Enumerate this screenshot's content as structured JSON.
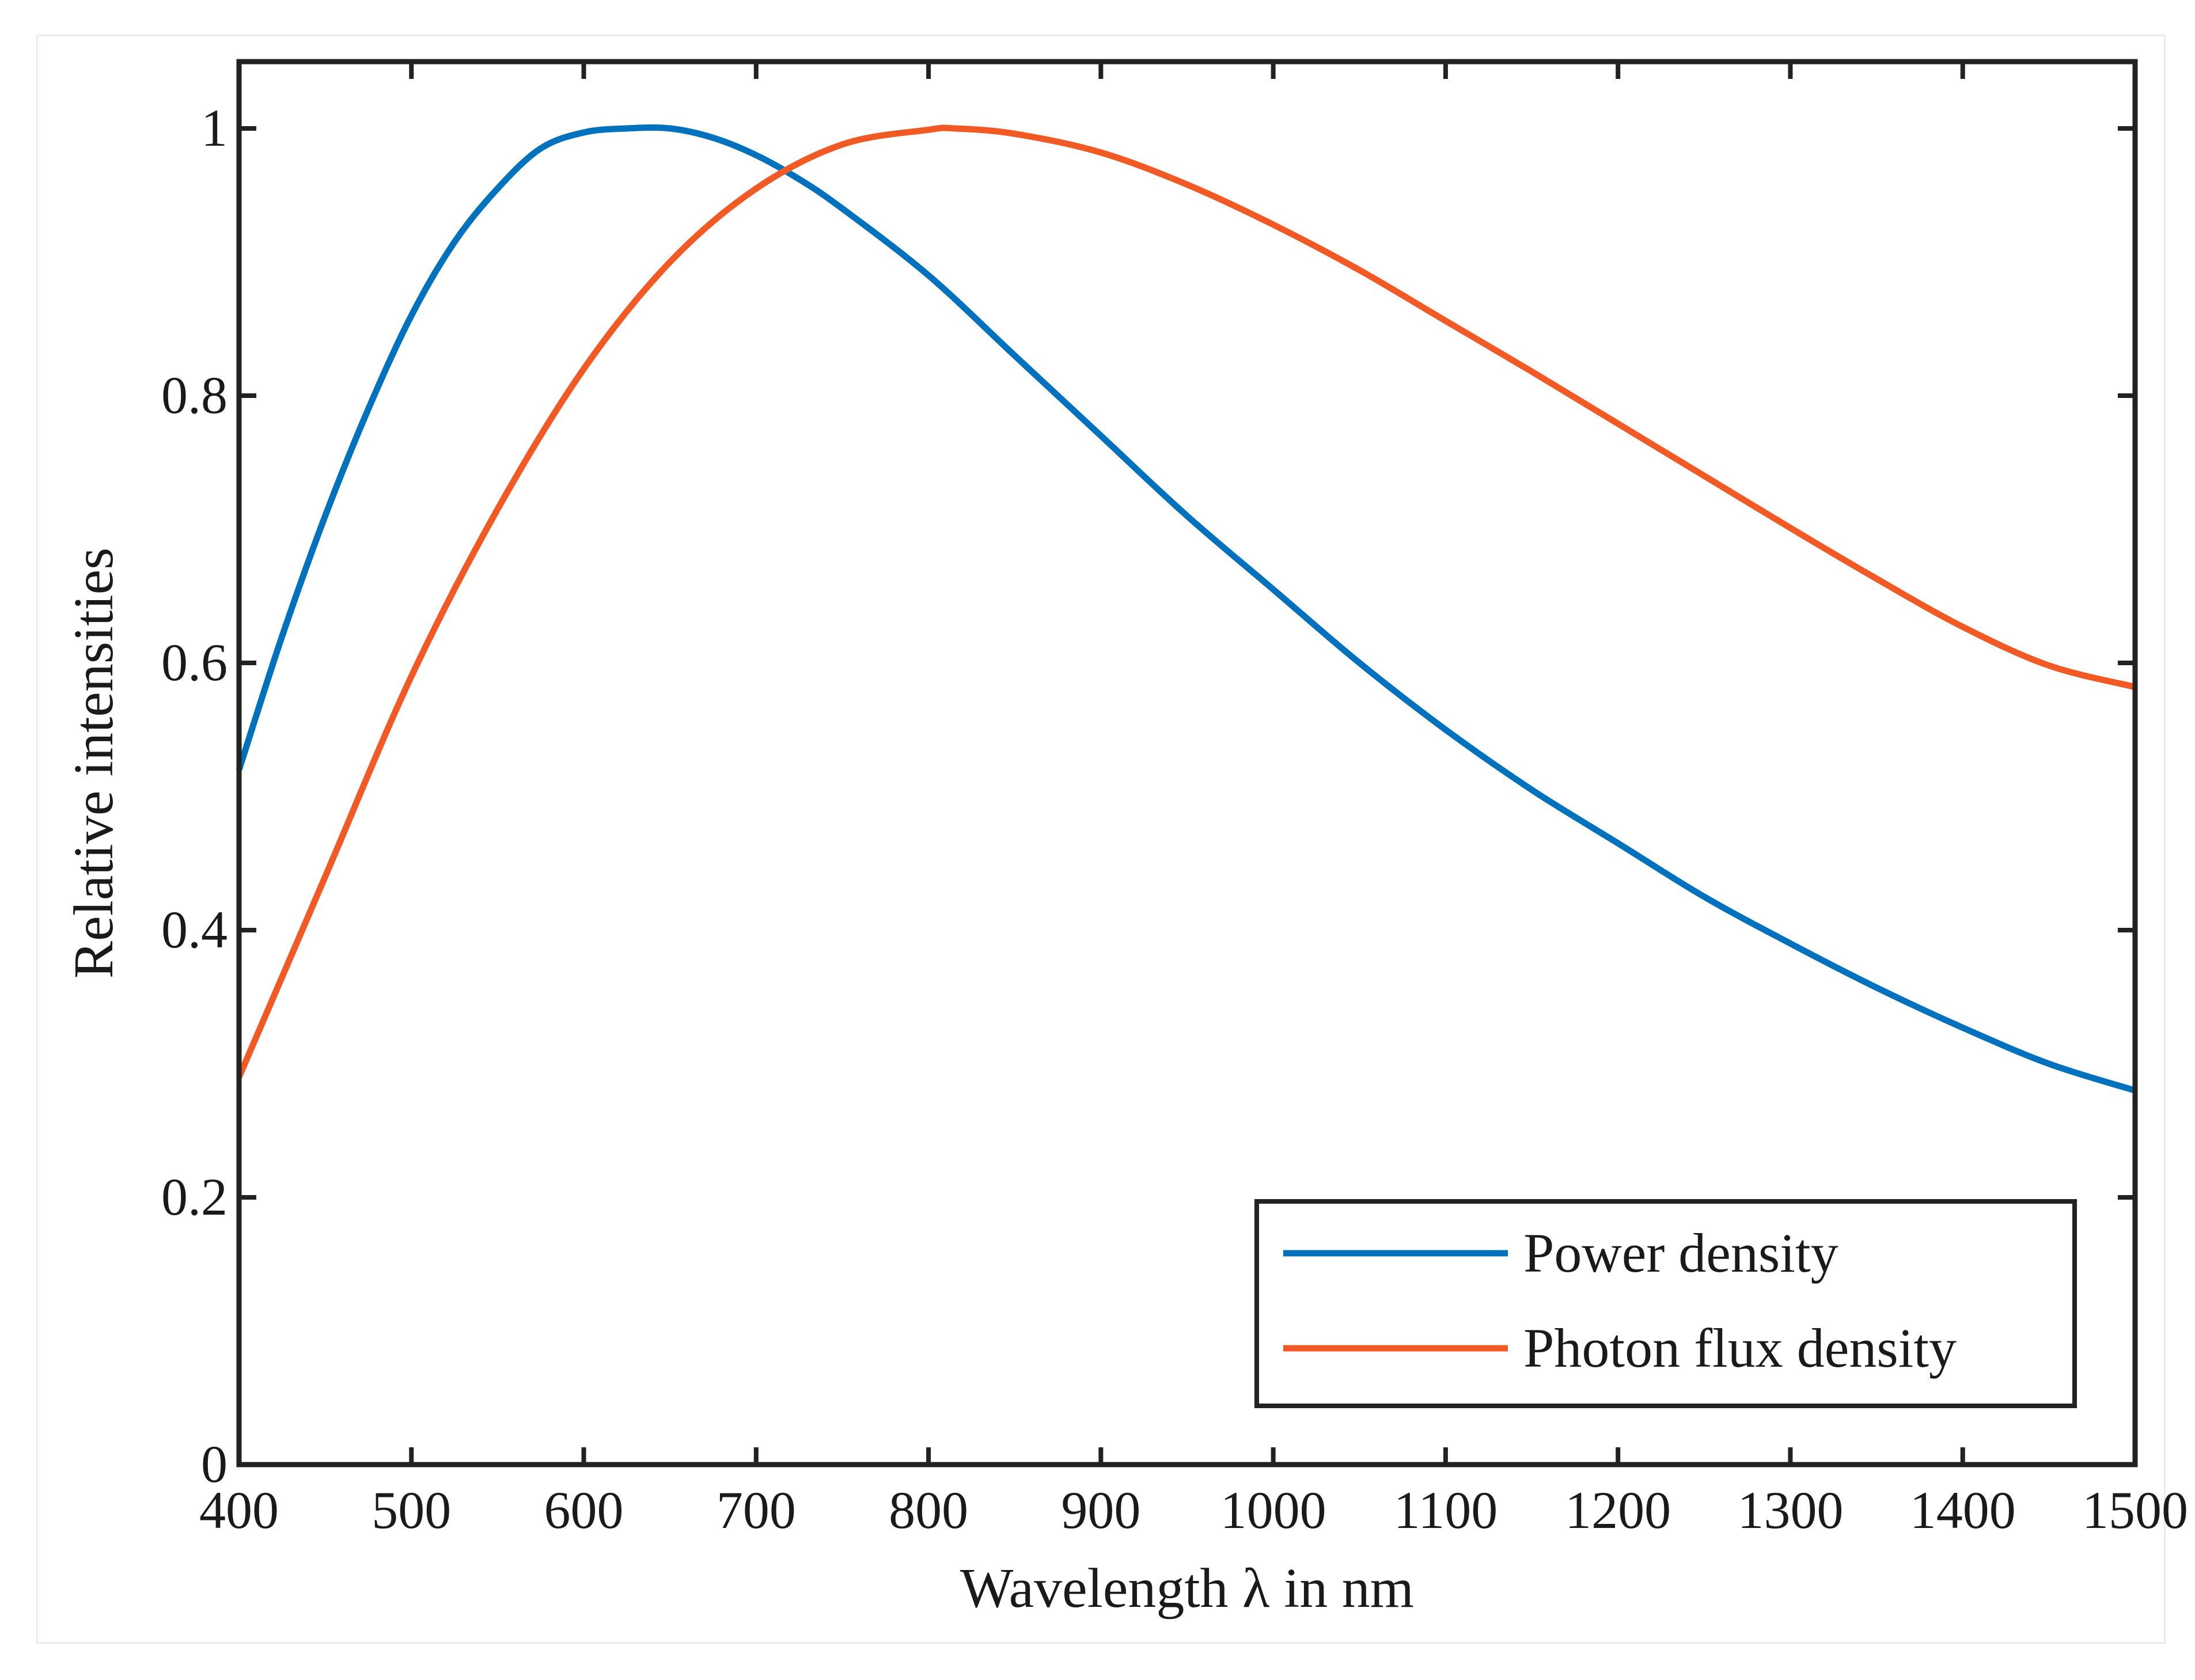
{
  "chart_data": {
    "type": "line",
    "title": "",
    "xlabel": "Wavelength λ in nm",
    "ylabel": "Relative intensities",
    "xlim": [
      400,
      1500
    ],
    "ylim": [
      0,
      1.05
    ],
    "xticks": [
      400,
      500,
      600,
      700,
      800,
      900,
      1000,
      1100,
      1200,
      1300,
      1400,
      1500
    ],
    "xtick_labels": [
      "400",
      "500",
      "600",
      "700",
      "800",
      "900",
      "1000",
      "1100",
      "1200",
      "1300",
      "1400",
      "1500"
    ],
    "yticks": [
      0,
      0.2,
      0.4,
      0.6,
      0.8,
      1
    ],
    "ytick_labels": [
      "0",
      "0.2",
      "0.4",
      "0.6",
      "0.8",
      "1"
    ],
    "grid": false,
    "legend_position": "bottom-right",
    "series": [
      {
        "name": "Power density",
        "color": "#0072bd",
        "x": [
          400,
          425,
          450,
          475,
          500,
          525,
          550,
          575,
          600,
          625,
          650,
          675,
          700,
          725,
          750,
          800,
          850,
          900,
          950,
          1000,
          1050,
          1100,
          1150,
          1200,
          1250,
          1300,
          1350,
          1400,
          1450,
          1500
        ],
        "y": [
          0.52,
          0.62,
          0.71,
          0.79,
          0.86,
          0.915,
          0.955,
          0.985,
          0.997,
          1.0,
          1.0,
          0.993,
          0.98,
          0.962,
          0.94,
          0.89,
          0.83,
          0.77,
          0.71,
          0.655,
          0.6,
          0.55,
          0.505,
          0.465,
          0.425,
          0.39,
          0.357,
          0.327,
          0.3,
          0.28
        ]
      },
      {
        "name": "Photon flux density",
        "color": "#f15a24",
        "x": [
          400,
          450,
          500,
          550,
          600,
          650,
          700,
          750,
          800,
          815,
          850,
          900,
          950,
          1000,
          1050,
          1100,
          1150,
          1200,
          1250,
          1300,
          1350,
          1400,
          1450,
          1500
        ],
        "y": [
          0.29,
          0.44,
          0.59,
          0.715,
          0.82,
          0.9,
          0.955,
          0.988,
          0.999,
          1.0,
          0.996,
          0.982,
          0.958,
          0.928,
          0.894,
          0.856,
          0.818,
          0.779,
          0.74,
          0.701,
          0.663,
          0.627,
          0.598,
          0.582
        ]
      }
    ]
  }
}
